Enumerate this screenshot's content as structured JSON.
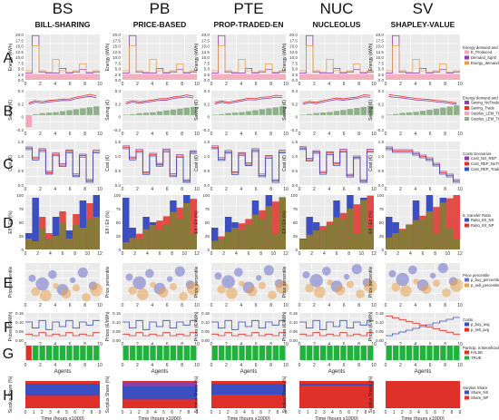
{
  "methods": [
    "BS",
    "PB",
    "PTE",
    "NUC",
    "SV"
  ],
  "subtitles": [
    "BILL-SHARING",
    "PRICE-BASED",
    "PROP-TRADED-EN",
    "NUCLEOLUS",
    "SHAPLEY-VALUE"
  ],
  "row_letters": [
    "A",
    "B",
    "C",
    "D",
    "E",
    "F",
    "G",
    "H"
  ],
  "colors": {
    "blue": "#3b4fc0",
    "red": "#e0302a",
    "purple": "#8b3fa8",
    "olive": "#8a7a3a",
    "green": "#1fb33c",
    "pink": "#f4a6b8",
    "orange": "#e8a050",
    "sage": "#8fb08a",
    "gray_bg": "#ebebeb",
    "grid": "#ffffff"
  },
  "chart_data": [
    {
      "row": "A",
      "type": "area",
      "ylabel": "Energy (kWh)",
      "yticks": [
        "20.0",
        "17.5",
        "15.0",
        "12.5",
        "10.0",
        "7.5",
        "5.0",
        "2.5",
        "0.0"
      ],
      "ylim": [
        0,
        20
      ],
      "xticks": [
        "0",
        "2",
        "4",
        "6",
        "8",
        "10"
      ],
      "xlim": [
        0,
        11
      ],
      "legend_title": "Energy demand and production",
      "legend": [
        "E_Produced",
        "Demand_Sgn0",
        "Energy_demand"
      ],
      "series": [
        {
          "name": "E_Produced",
          "kind": "area",
          "values": [
            2.5,
            2.5,
            2.5,
            2.5,
            2.5,
            2.5,
            2.5,
            2.5,
            2.5,
            2.5,
            2.5
          ]
        },
        {
          "name": "Demand_Sgn0",
          "kind": "step",
          "values": [
            3,
            19.5,
            3.5,
            3,
            3,
            5,
            3,
            3.5,
            4.5,
            3,
            3.5
          ]
        },
        {
          "name": "Energy_demand",
          "kind": "step",
          "values": [
            4,
            15,
            4,
            3.5,
            9,
            4,
            3.5,
            4,
            7,
            3.5,
            4
          ]
        }
      ]
    },
    {
      "row": "B",
      "type": "line",
      "ylabel": "Saving (€)",
      "yticks": [
        "0.4",
        "0.2",
        "0",
        "-0.2"
      ],
      "ylim": [
        -0.3,
        0.5
      ],
      "xticks": [
        "0",
        "2",
        "4",
        "6",
        "8",
        "10"
      ],
      "xlim": [
        0,
        11
      ],
      "legend_title": "Energy demand and production",
      "legend": [
        "Saving_NoTrade",
        "Saving_Trade",
        "Surplus_LEM_Trading < 0",
        "Surplus_LEM_Trading > 0"
      ],
      "series": [
        {
          "name": "Saving_NoTrade",
          "kind": "line",
          "values": [
            0.22,
            0.26,
            0.24,
            0.27,
            0.29,
            0.31,
            0.3,
            0.33,
            0.35,
            0.38,
            0.36
          ]
        },
        {
          "name": "Saving_Trade",
          "kind": "line",
          "values": [
            0.25,
            0.29,
            0.27,
            0.3,
            0.32,
            0.34,
            0.33,
            0.36,
            0.38,
            0.42,
            0.4
          ]
        },
        {
          "name": "Surplus_LEM_Trading > 0",
          "kind": "bar",
          "values": [
            -0.25,
            0.02,
            0.04,
            0.05,
            0.06,
            0.08,
            0.1,
            0.12,
            0.14,
            0.16,
            0.18
          ]
        }
      ]
    },
    {
      "row": "C",
      "type": "line",
      "ylabel": "Cost (€)",
      "yticks": [
        "1.5",
        "1.0",
        "0.5",
        "0.0"
      ],
      "ylim": [
        0,
        1.6
      ],
      "xticks": [
        "0",
        "2",
        "4",
        "6",
        "8",
        "10"
      ],
      "xlim": [
        0,
        11
      ],
      "legend_title": "Costs Scenarios",
      "legend": [
        "Cost_NO_REP",
        "Cost_REP_NoTrade",
        "Cost_REP_Trade"
      ],
      "series": [
        {
          "name": "Cost_NO_REP",
          "kind": "step",
          "values": [
            1.4,
            1.0,
            1.3,
            0.5,
            1.2,
            0.8,
            1.3,
            0.4,
            1.1,
            0.2,
            1.3
          ]
        },
        {
          "name": "Cost_REP_NoTrade",
          "kind": "step",
          "values": [
            1.35,
            0.95,
            1.25,
            0.45,
            1.15,
            0.75,
            1.25,
            0.35,
            1.05,
            0.15,
            1.25
          ]
        },
        {
          "name": "Cost_REP_Trade",
          "kind": "step",
          "values": [
            1.3,
            0.9,
            1.2,
            0.4,
            1.1,
            0.7,
            1.2,
            0.3,
            1.0,
            0.1,
            1.2
          ]
        }
      ]
    },
    {
      "row": "D",
      "type": "bar",
      "ylabel": "Elf / Elr (%)",
      "yticks": [
        "100",
        "75",
        "50",
        "25",
        "0"
      ],
      "ylim": [
        0,
        100
      ],
      "xticks": [
        "0",
        "2",
        "4",
        "6",
        "8",
        "10",
        "12"
      ],
      "xlim": [
        0,
        12
      ],
      "legend_title": "E. transfer Ratio",
      "legend": [
        "Ratio_Elr_NS",
        "Ratio_Elr_NP"
      ],
      "series": [
        {
          "name": "Ratio_Elr_NS",
          "values": [
            30,
            95,
            40,
            20,
            60,
            50,
            35,
            45,
            90,
            55,
            100
          ]
        },
        {
          "name": "Ratio_Elr_NP",
          "values": [
            20,
            15,
            60,
            30,
            25,
            70,
            20,
            65,
            40,
            85,
            60
          ]
        }
      ]
    },
    {
      "row": "E",
      "type": "scatter",
      "ylabel": "Price percentile",
      "xticks": [
        "0",
        "2",
        "4",
        "6",
        "8",
        "10"
      ],
      "xlim": [
        0,
        11
      ],
      "legend_title": "Price percentile",
      "legend": [
        "p_buy_percentile",
        "p_sell_percentile"
      ],
      "series": [
        {
          "name": "p_buy_percentile",
          "points": [
            [
              1,
              60,
              5
            ],
            [
              2.5,
              45,
              9
            ],
            [
              4,
              70,
              6
            ],
            [
              5.5,
              30,
              8
            ],
            [
              7,
              55,
              4
            ],
            [
              8.5,
              75,
              7
            ],
            [
              10,
              40,
              6
            ]
          ]
        },
        {
          "name": "p_sell_percentile",
          "points": [
            [
              1.5,
              25,
              6
            ],
            [
              3,
              15,
              8
            ],
            [
              4.5,
              40,
              4
            ],
            [
              6,
              20,
              7
            ],
            [
              7.5,
              35,
              5
            ],
            [
              9,
              10,
              6
            ],
            [
              10.5,
              30,
              9
            ]
          ]
        }
      ]
    },
    {
      "row": "F",
      "type": "line",
      "ylabel": "Prices (€/kWh)",
      "yticks": [
        "0.15",
        "0.10",
        "0.05",
        "0.00"
      ],
      "ylim": [
        0,
        0.18
      ],
      "xticks": [
        "0",
        "2",
        "4",
        "6",
        "8",
        "10"
      ],
      "xlim": [
        0,
        11
      ],
      "legend_title": "Costs",
      "legend": [
        "p_buy_avg",
        "p_sell_avg"
      ],
      "series": [
        {
          "name": "p_buy_avg",
          "kind": "step",
          "values": [
            0.12,
            0.08,
            0.13,
            0.07,
            0.12,
            0.09,
            0.13,
            0.08,
            0.12,
            0.1,
            0.13
          ]
        },
        {
          "name": "p_sell_avg",
          "kind": "step",
          "values": [
            0.04,
            0.03,
            0.05,
            0.03,
            0.04,
            0.03,
            0.05,
            0.03,
            0.04,
            0.03,
            0.05
          ]
        }
      ]
    },
    {
      "row": "G",
      "type": "heatmap",
      "xlabel": "Agents",
      "xticks": [
        "0",
        "2",
        "4",
        "6",
        "8",
        "10"
      ],
      "xlim": [
        0,
        11
      ],
      "legend_title": "Particip. is Beneficial?",
      "legend": [
        "FALSE",
        "TRUE"
      ],
      "bs_values": [
        false,
        true,
        true,
        true,
        true,
        true,
        true,
        true,
        true,
        true,
        true
      ]
    },
    {
      "row": "H",
      "type": "area",
      "ylabel": "Surplus Share (%)",
      "xlabel": "Time (hours x1000)",
      "xticks": [
        "0",
        "1",
        "2",
        "3",
        "4",
        "5",
        "6",
        "7",
        "8",
        "9"
      ],
      "xlim": [
        0,
        9
      ],
      "legend_title": "Surplus Share",
      "legend": [
        "Share_NS",
        "Share_NP"
      ],
      "share_ns_by_method": [
        0.55,
        0.72,
        0.5,
        0.08,
        0.0
      ]
    }
  ]
}
